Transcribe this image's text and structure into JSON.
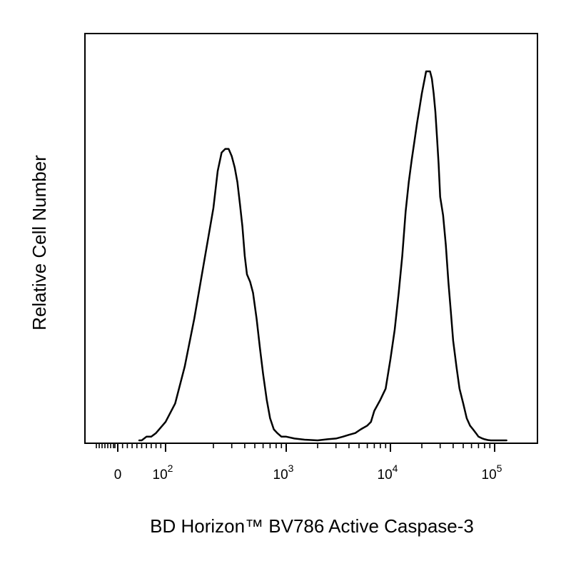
{
  "chart_data": {
    "type": "line",
    "title": "",
    "xlabel": "BD Horizon™ BV786 Active Caspase-3",
    "ylabel": "Relative Cell Number",
    "x_scale": "biexponential",
    "y_scale": "linear",
    "grid": false,
    "legend": "none",
    "xlim": [
      -20,
      150000
    ],
    "ylim": [
      0,
      100
    ],
    "x_ticks": [
      {
        "value": 0,
        "base": "0",
        "exp": ""
      },
      {
        "value": 100,
        "base": "10",
        "exp": "2"
      },
      {
        "value": 1000,
        "base": "10",
        "exp": "3"
      },
      {
        "value": 10000,
        "base": "10",
        "exp": "4"
      },
      {
        "value": 100000,
        "base": "10",
        "exp": "5"
      }
    ],
    "line_color": "#000000",
    "series": [
      {
        "x": [
          45,
          50,
          60,
          70,
          80,
          100,
          120,
          140,
          160,
          180,
          200,
          220,
          240,
          260,
          280,
          300,
          320,
          340,
          360,
          380,
          400,
          420,
          450,
          480,
          520,
          560,
          600,
          650,
          700,
          760,
          820,
          900,
          1000,
          1200,
          1500,
          2000,
          2500,
          3000,
          3500,
          4000,
          4600,
          5200,
          6000,
          6500,
          7000,
          8000,
          9000,
          10000,
          11000,
          12000,
          13000,
          14000,
          15000,
          16000,
          17000,
          18000,
          19000,
          20000,
          21000,
          22000,
          23000,
          24000,
          25000,
          26000,
          27000,
          28000,
          29000,
          30000,
          32000,
          34000,
          36000,
          38000,
          40000,
          43000,
          46000,
          50000,
          54000,
          58000,
          62000,
          66000,
          70000,
          75000,
          80000,
          86000,
          92000,
          100000,
          110000,
          120000,
          130000
        ],
        "values": [
          0,
          0,
          1,
          1,
          2,
          5,
          10,
          20,
          33,
          48,
          63,
          73,
          78,
          79,
          79,
          77,
          74,
          70,
          64,
          58,
          50,
          45,
          43,
          40,
          33,
          25,
          18,
          11,
          6,
          3,
          2,
          1,
          1,
          0.5,
          0.2,
          0,
          0.3,
          0.5,
          1,
          1.5,
          2,
          3,
          4,
          5,
          8,
          11,
          14,
          22,
          30,
          40,
          50,
          62,
          70,
          76,
          81,
          86,
          90,
          94,
          97,
          100,
          100,
          100,
          98,
          94,
          89,
          82,
          75,
          66,
          61,
          53,
          43,
          35,
          27,
          20,
          14,
          10,
          6,
          4,
          3,
          2,
          1,
          0.6,
          0.3,
          0.1,
          0,
          0,
          0,
          0,
          0
        ]
      }
    ]
  }
}
